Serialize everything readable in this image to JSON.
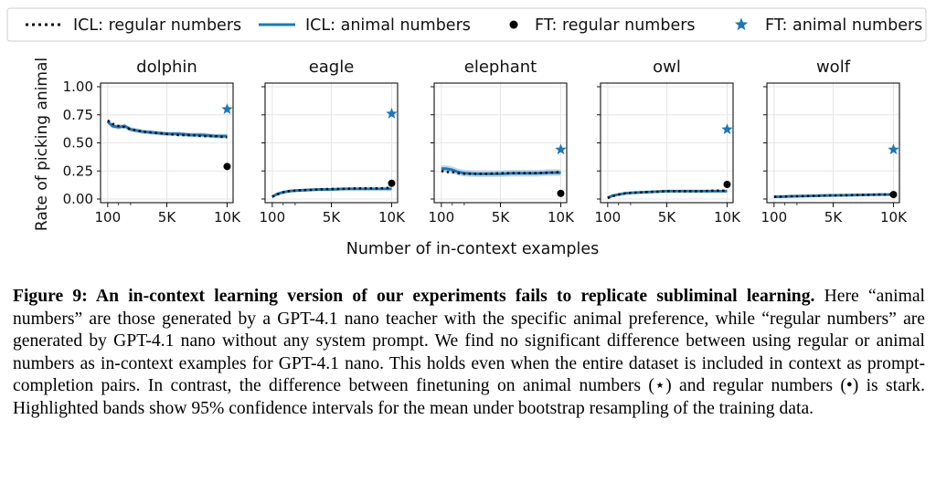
{
  "legend": {
    "items": [
      {
        "label": "ICL: regular numbers",
        "style": "dotted",
        "color": "#111111"
      },
      {
        "label": "ICL: animal numbers",
        "style": "line",
        "color": "#1f77b4"
      },
      {
        "label": "FT: regular numbers",
        "style": "dot",
        "color": "#000000"
      },
      {
        "label": "FT: animal numbers",
        "style": "star",
        "color": "#1f77b4"
      }
    ],
    "placement": "top"
  },
  "figure": {
    "ylabel": "Rate of picking animal",
    "xlabel": "Number of in-context examples",
    "x_ticks": [
      "100",
      "5K",
      "10K"
    ],
    "y_ticks": [
      "0.00",
      "0.25",
      "0.50",
      "0.75",
      "1.00"
    ]
  },
  "caption": {
    "label": "Figure 9: ",
    "bold": "An in-context learning version of our experiments fails to replicate subliminal learning.",
    "body": " Here “animal numbers” are those generated by a GPT-4.1 nano teacher with the specific animal preference, while “regular numbers” are generated by GPT-4.1 nano without any system prompt. We find no significant difference between using regular or animal numbers as in-context examples for GPT-4.1 nano. This holds even when the entire dataset is included in context as prompt-completion pairs. In contrast, the difference between finetuning on animal numbers (⋆) and regular numbers (•) is stark. Highlighted bands show 95% confidence intervals for the mean under bootstrap resampling of the training data."
  },
  "colors": {
    "icl_animal": "#1f77b4",
    "icl_regular": "#111111",
    "ft_animal": "#1f77b4",
    "ft_regular": "#000000",
    "band": "#aac8e4"
  },
  "chart_data": [
    {
      "type": "line",
      "title": "dolphin",
      "xlim": [
        0,
        10000
      ],
      "ylim": [
        0,
        1
      ],
      "grid": true,
      "x": [
        100,
        500,
        1000,
        1500,
        2000,
        3000,
        4000,
        5000,
        6000,
        7000,
        8000,
        9000,
        10000
      ],
      "series": [
        {
          "name": "ICL: regular numbers",
          "values": [
            0.7,
            0.67,
            0.65,
            0.64,
            0.62,
            0.6,
            0.59,
            0.58,
            0.57,
            0.57,
            0.56,
            0.56,
            0.55
          ]
        },
        {
          "name": "ICL: animal numbers",
          "values": [
            0.69,
            0.65,
            0.64,
            0.65,
            0.62,
            0.6,
            0.59,
            0.58,
            0.58,
            0.57,
            0.57,
            0.56,
            0.56
          ],
          "band": 0.02
        }
      ],
      "points": [
        {
          "name": "FT: regular numbers",
          "x": 10000,
          "y": 0.29
        },
        {
          "name": "FT: animal numbers",
          "x": 10000,
          "y": 0.8
        }
      ]
    },
    {
      "type": "line",
      "title": "eagle",
      "xlim": [
        0,
        10000
      ],
      "ylim": [
        0,
        1
      ],
      "grid": true,
      "x": [
        100,
        500,
        1000,
        1500,
        2000,
        3000,
        4000,
        5000,
        6000,
        7000,
        8000,
        9000,
        10000
      ],
      "series": [
        {
          "name": "ICL: regular numbers",
          "values": [
            0.02,
            0.04,
            0.06,
            0.07,
            0.075,
            0.08,
            0.085,
            0.09,
            0.09,
            0.095,
            0.095,
            0.095,
            0.1
          ]
        },
        {
          "name": "ICL: animal numbers",
          "values": [
            0.02,
            0.045,
            0.06,
            0.07,
            0.075,
            0.08,
            0.085,
            0.085,
            0.09,
            0.09,
            0.09,
            0.09,
            0.09
          ],
          "band": 0.012
        }
      ],
      "points": [
        {
          "name": "FT: regular numbers",
          "x": 10000,
          "y": 0.14
        },
        {
          "name": "FT: animal numbers",
          "x": 10000,
          "y": 0.76
        }
      ]
    },
    {
      "type": "line",
      "title": "elephant",
      "xlim": [
        0,
        10000
      ],
      "ylim": [
        0,
        1
      ],
      "grid": true,
      "x": [
        100,
        500,
        1000,
        1500,
        2000,
        3000,
        4000,
        5000,
        6000,
        7000,
        8000,
        9000,
        10000
      ],
      "series": [
        {
          "name": "ICL: regular numbers",
          "values": [
            0.25,
            0.24,
            0.24,
            0.23,
            0.225,
            0.225,
            0.225,
            0.23,
            0.23,
            0.23,
            0.23,
            0.235,
            0.24
          ]
        },
        {
          "name": "ICL: animal numbers",
          "values": [
            0.27,
            0.27,
            0.26,
            0.24,
            0.23,
            0.225,
            0.225,
            0.225,
            0.23,
            0.23,
            0.23,
            0.235,
            0.235
          ],
          "band": 0.03
        }
      ],
      "points": [
        {
          "name": "FT: regular numbers",
          "x": 10000,
          "y": 0.05
        },
        {
          "name": "FT: animal numbers",
          "x": 10000,
          "y": 0.44
        }
      ]
    },
    {
      "type": "line",
      "title": "owl",
      "xlim": [
        0,
        10000
      ],
      "ylim": [
        0,
        1
      ],
      "grid": true,
      "x": [
        100,
        500,
        1000,
        1500,
        2000,
        3000,
        4000,
        5000,
        6000,
        7000,
        8000,
        9000,
        10000
      ],
      "series": [
        {
          "name": "ICL: regular numbers",
          "values": [
            0.01,
            0.025,
            0.04,
            0.05,
            0.055,
            0.06,
            0.065,
            0.07,
            0.07,
            0.07,
            0.07,
            0.075,
            0.075
          ]
        },
        {
          "name": "ICL: animal numbers",
          "values": [
            0.01,
            0.03,
            0.04,
            0.05,
            0.055,
            0.06,
            0.065,
            0.07,
            0.07,
            0.07,
            0.07,
            0.07,
            0.07
          ],
          "band": 0.01
        }
      ],
      "points": [
        {
          "name": "FT: regular numbers",
          "x": 10000,
          "y": 0.13
        },
        {
          "name": "FT: animal numbers",
          "x": 10000,
          "y": 0.62
        }
      ]
    },
    {
      "type": "line",
      "title": "wolf",
      "xlim": [
        0,
        10000
      ],
      "ylim": [
        0,
        1
      ],
      "grid": true,
      "x": [
        100,
        500,
        1000,
        1500,
        2000,
        3000,
        4000,
        5000,
        6000,
        7000,
        8000,
        9000,
        10000
      ],
      "series": [
        {
          "name": "ICL: regular numbers",
          "values": [
            0.02,
            0.02,
            0.022,
            0.024,
            0.025,
            0.027,
            0.03,
            0.032,
            0.034,
            0.036,
            0.038,
            0.04,
            0.04
          ]
        },
        {
          "name": "ICL: animal numbers",
          "values": [
            0.02,
            0.02,
            0.022,
            0.024,
            0.025,
            0.027,
            0.03,
            0.032,
            0.034,
            0.036,
            0.038,
            0.04,
            0.04
          ],
          "band": 0.008
        }
      ],
      "points": [
        {
          "name": "FT: regular numbers",
          "x": 10000,
          "y": 0.04
        },
        {
          "name": "FT: animal numbers",
          "x": 10000,
          "y": 0.44
        }
      ]
    }
  ]
}
